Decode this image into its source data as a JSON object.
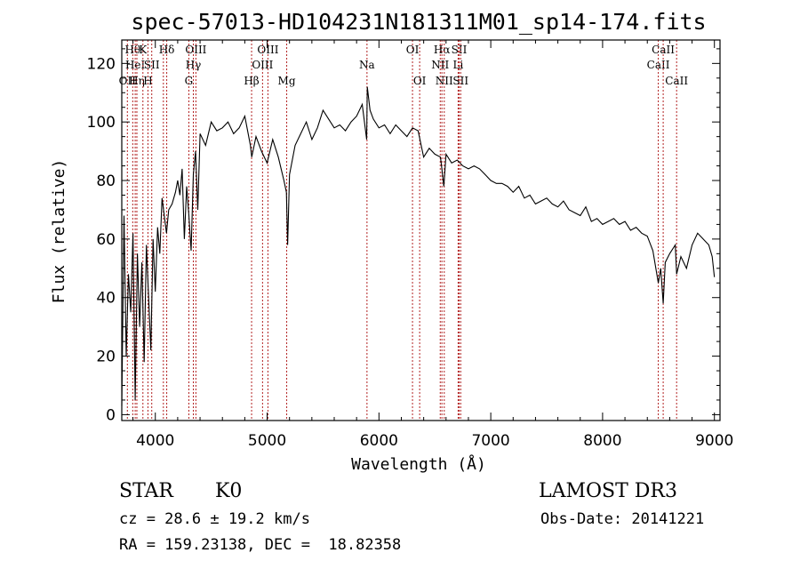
{
  "chart_data": {
    "type": "line",
    "title": "spec-57013-HD104231N181311M01_sp14-174.fits",
    "xlabel": "Wavelength (Å)",
    "ylabel": "Flux (relative)",
    "xlim": [
      3700,
      9050
    ],
    "ylim": [
      -2,
      128
    ],
    "xticks": [
      4000,
      5000,
      6000,
      7000,
      8000,
      9000
    ],
    "yticks": [
      0,
      20,
      40,
      60,
      80,
      100,
      120
    ],
    "series": [
      {
        "name": "flux",
        "x": [
          3700,
          3720,
          3740,
          3760,
          3780,
          3800,
          3820,
          3840,
          3860,
          3880,
          3900,
          3920,
          3940,
          3960,
          3980,
          4000,
          4020,
          4040,
          4060,
          4080,
          4100,
          4120,
          4150,
          4180,
          4200,
          4220,
          4240,
          4260,
          4280,
          4300,
          4320,
          4340,
          4360,
          4380,
          4400,
          4450,
          4500,
          4550,
          4600,
          4650,
          4700,
          4750,
          4800,
          4850,
          4862,
          4900,
          4950,
          5000,
          5050,
          5100,
          5150,
          5172,
          5183,
          5200,
          5250,
          5300,
          5350,
          5400,
          5450,
          5500,
          5550,
          5600,
          5650,
          5700,
          5750,
          5800,
          5850,
          5890,
          5896,
          5920,
          5950,
          6000,
          6050,
          6100,
          6150,
          6200,
          6250,
          6300,
          6350,
          6400,
          6450,
          6500,
          6550,
          6563,
          6580,
          6600,
          6650,
          6700,
          6750,
          6800,
          6850,
          6900,
          6950,
          7000,
          7050,
          7100,
          7150,
          7200,
          7250,
          7300,
          7350,
          7400,
          7450,
          7500,
          7550,
          7600,
          7650,
          7700,
          7750,
          7800,
          7850,
          7900,
          7950,
          8000,
          8050,
          8100,
          8150,
          8200,
          8250,
          8300,
          8350,
          8400,
          8450,
          8498,
          8520,
          8542,
          8560,
          8600,
          8650,
          8662,
          8700,
          8750,
          8800,
          8850,
          8900,
          8950,
          8980,
          9000
        ],
        "y": [
          3,
          68,
          20,
          48,
          35,
          62,
          5,
          55,
          30,
          52,
          18,
          58,
          40,
          22,
          60,
          42,
          64,
          55,
          74,
          68,
          62,
          70,
          72,
          76,
          80,
          75,
          84,
          60,
          78,
          68,
          56,
          82,
          90,
          70,
          96,
          92,
          100,
          97,
          98,
          100,
          96,
          98,
          102,
          92,
          88,
          95,
          90,
          86,
          94,
          88,
          80,
          76,
          58,
          82,
          92,
          96,
          100,
          94,
          98,
          104,
          101,
          98,
          99,
          97,
          100,
          102,
          106,
          94,
          112,
          104,
          101,
          98,
          99,
          96,
          99,
          97,
          95,
          98,
          97,
          88,
          91,
          89,
          88,
          84,
          78,
          89,
          86,
          87,
          85,
          84,
          85,
          84,
          82,
          80,
          79,
          79,
          78,
          76,
          78,
          74,
          75,
          72,
          73,
          74,
          72,
          71,
          73,
          70,
          69,
          68,
          71,
          66,
          67,
          65,
          66,
          67,
          65,
          66,
          63,
          64,
          62,
          61,
          56,
          45,
          50,
          38,
          52,
          55,
          58,
          48,
          54,
          50,
          58,
          62,
          60,
          58,
          54,
          47
        ]
      }
    ],
    "line_markers": [
      {
        "wavelength": 3750,
        "label": "OII",
        "row": 2
      },
      {
        "wavelength": 3798,
        "label": "Hθ",
        "row": 0
      },
      {
        "wavelength": 3820,
        "label": "HeI",
        "row": 1
      },
      {
        "wavelength": 3835,
        "label": "Hη",
        "row": 2
      },
      {
        "wavelength": 3889,
        "label": "K",
        "row": 0
      },
      {
        "wavelength": 3934,
        "label": "H",
        "row": 2
      },
      {
        "wavelength": 3968,
        "label": "SII",
        "row": 1
      },
      {
        "wavelength": 4102,
        "label": "Hδ",
        "row": 0
      },
      {
        "wavelength": 4072,
        "label": "",
        "row": 1
      },
      {
        "wavelength": 4300,
        "label": "G",
        "row": 2
      },
      {
        "wavelength": 4340,
        "label": "Hγ",
        "row": 1
      },
      {
        "wavelength": 4363,
        "label": "OIII",
        "row": 0
      },
      {
        "wavelength": 4861,
        "label": "Hβ",
        "row": 2
      },
      {
        "wavelength": 4959,
        "label": "OIII",
        "row": 1
      },
      {
        "wavelength": 5007,
        "label": "OIII",
        "row": 0
      },
      {
        "wavelength": 5175,
        "label": "Mg",
        "row": 2
      },
      {
        "wavelength": 5893,
        "label": "Na",
        "row": 1
      },
      {
        "wavelength": 6300,
        "label": "OI",
        "row": 0
      },
      {
        "wavelength": 6364,
        "label": "OI",
        "row": 2
      },
      {
        "wavelength": 6548,
        "label": "NII",
        "row": 1
      },
      {
        "wavelength": 6563,
        "label": "Hα",
        "row": 0
      },
      {
        "wavelength": 6584,
        "label": "NII",
        "row": 2
      },
      {
        "wavelength": 6708,
        "label": "Li",
        "row": 1
      },
      {
        "wavelength": 6717,
        "label": "SII",
        "row": 0
      },
      {
        "wavelength": 6731,
        "label": "SII",
        "row": 2
      },
      {
        "wavelength": 8498,
        "label": "CaII",
        "row": 1
      },
      {
        "wavelength": 8542,
        "label": "CaII",
        "row": 0
      },
      {
        "wavelength": 8662,
        "label": "CaII",
        "row": 2
      }
    ]
  },
  "info": {
    "class_label": "STAR",
    "subclass": "K0",
    "survey": "LAMOST DR3",
    "cz_text": "cz = 28.6 ± 19.2 km/s",
    "obs_date": "Obs-Date: 20141221",
    "coords": "RA = 159.23138, DEC =  18.82358"
  }
}
